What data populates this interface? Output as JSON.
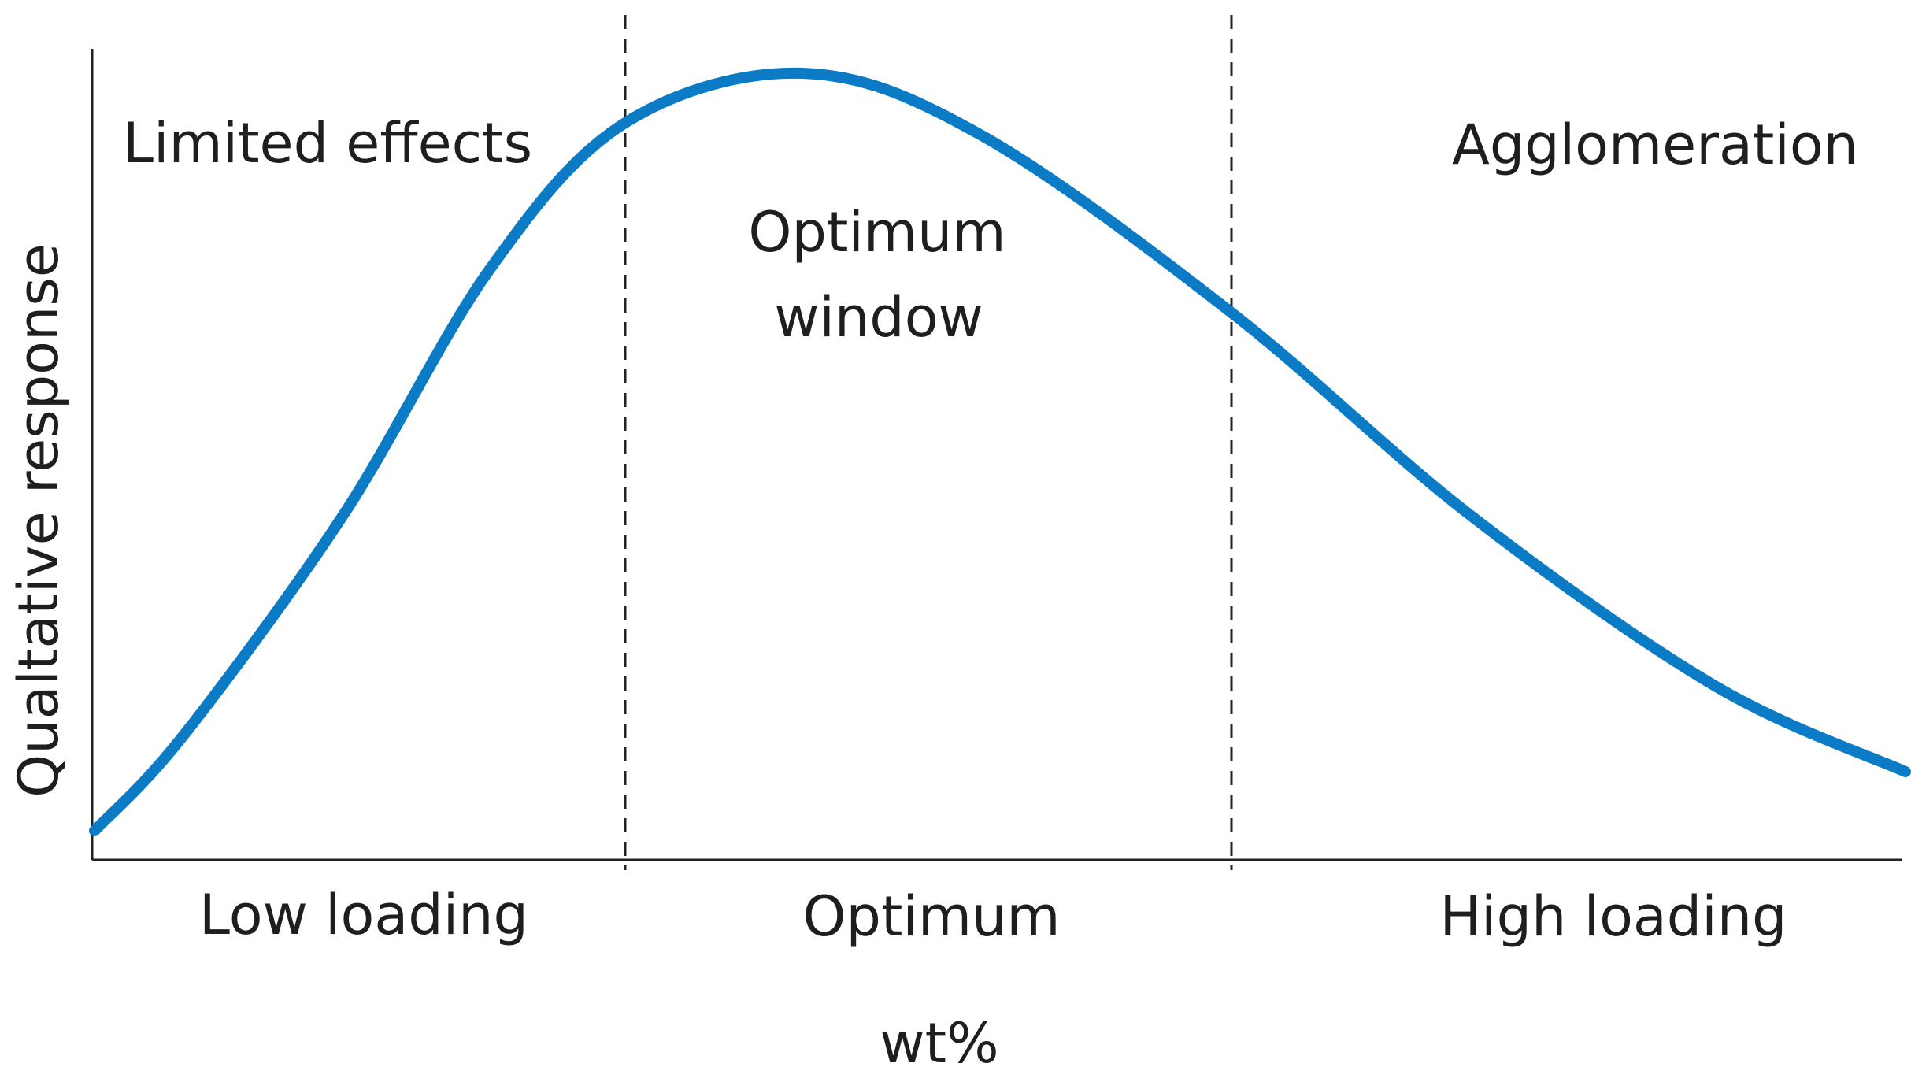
{
  "y_axis_label": "Qualtative response",
  "x_axis_label": "wt%",
  "regions": [
    {
      "annotation": [
        "Limited effects"
      ],
      "range_label": "Low loading"
    },
    {
      "annotation": [
        "Optimum",
        "window"
      ],
      "range_label": "Optimum"
    },
    {
      "annotation": [
        "Agglomeration"
      ],
      "range_label": "High loading"
    }
  ]
}
